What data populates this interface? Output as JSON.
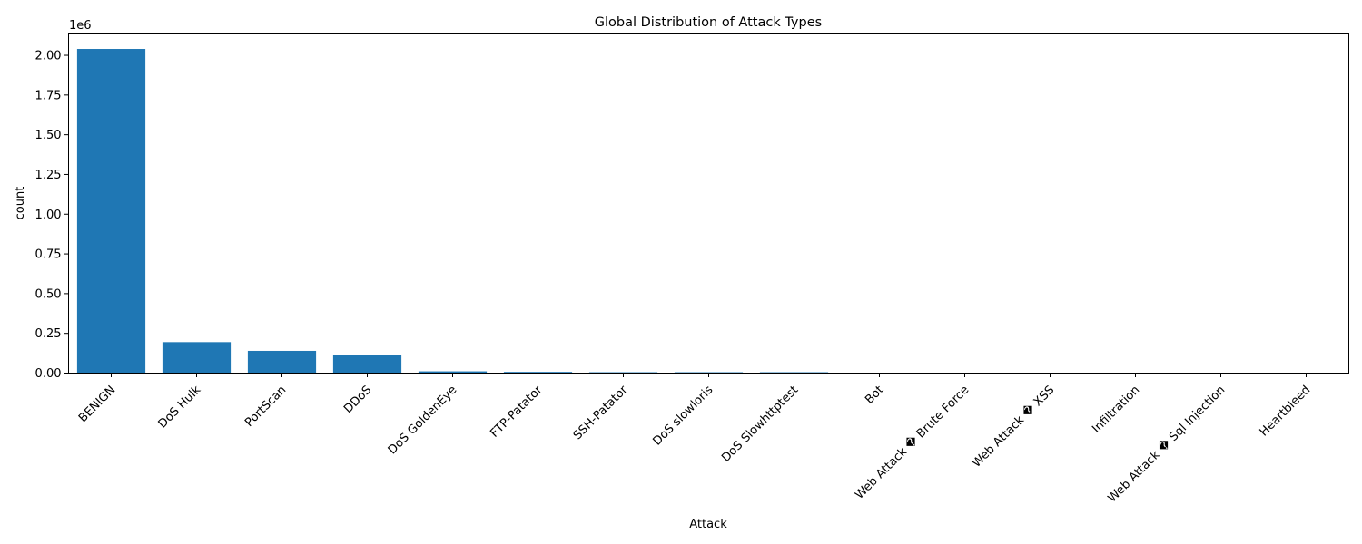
{
  "chart_data": {
    "type": "bar",
    "title": "Global Distribution of Attack Types",
    "xlabel": "Attack",
    "ylabel": "count",
    "scale_label": "1e6",
    "bar_color": "#1f77b4",
    "ylim": [
      0,
      2.14
    ],
    "yticks": [
      0.0,
      0.25,
      0.5,
      0.75,
      1.0,
      1.25,
      1.5,
      1.75,
      2.0
    ],
    "ytick_labels": [
      "0.00",
      "0.25",
      "0.50",
      "0.75",
      "1.00",
      "1.25",
      "1.50",
      "1.75",
      "2.00"
    ],
    "grid": false,
    "categories": [
      "BENIGN",
      "DoS Hulk",
      "PortScan",
      "DDoS",
      "DoS GoldenEye",
      "FTP-Patator",
      "SSH-Patator",
      "DoS slowloris",
      "DoS Slowhttptest",
      "Bot",
      "Web Attack � Brute Force",
      "Web Attack � XSS",
      "Infiltration",
      "Web Attack � Sql Injection",
      "Heartbleed"
    ],
    "values": [
      2.04,
      0.195,
      0.14,
      0.115,
      0.011,
      0.0075,
      0.0055,
      0.0055,
      0.0055,
      0.002,
      0.0015,
      0.0007,
      4e-05,
      2e-05,
      1e-05
    ]
  }
}
